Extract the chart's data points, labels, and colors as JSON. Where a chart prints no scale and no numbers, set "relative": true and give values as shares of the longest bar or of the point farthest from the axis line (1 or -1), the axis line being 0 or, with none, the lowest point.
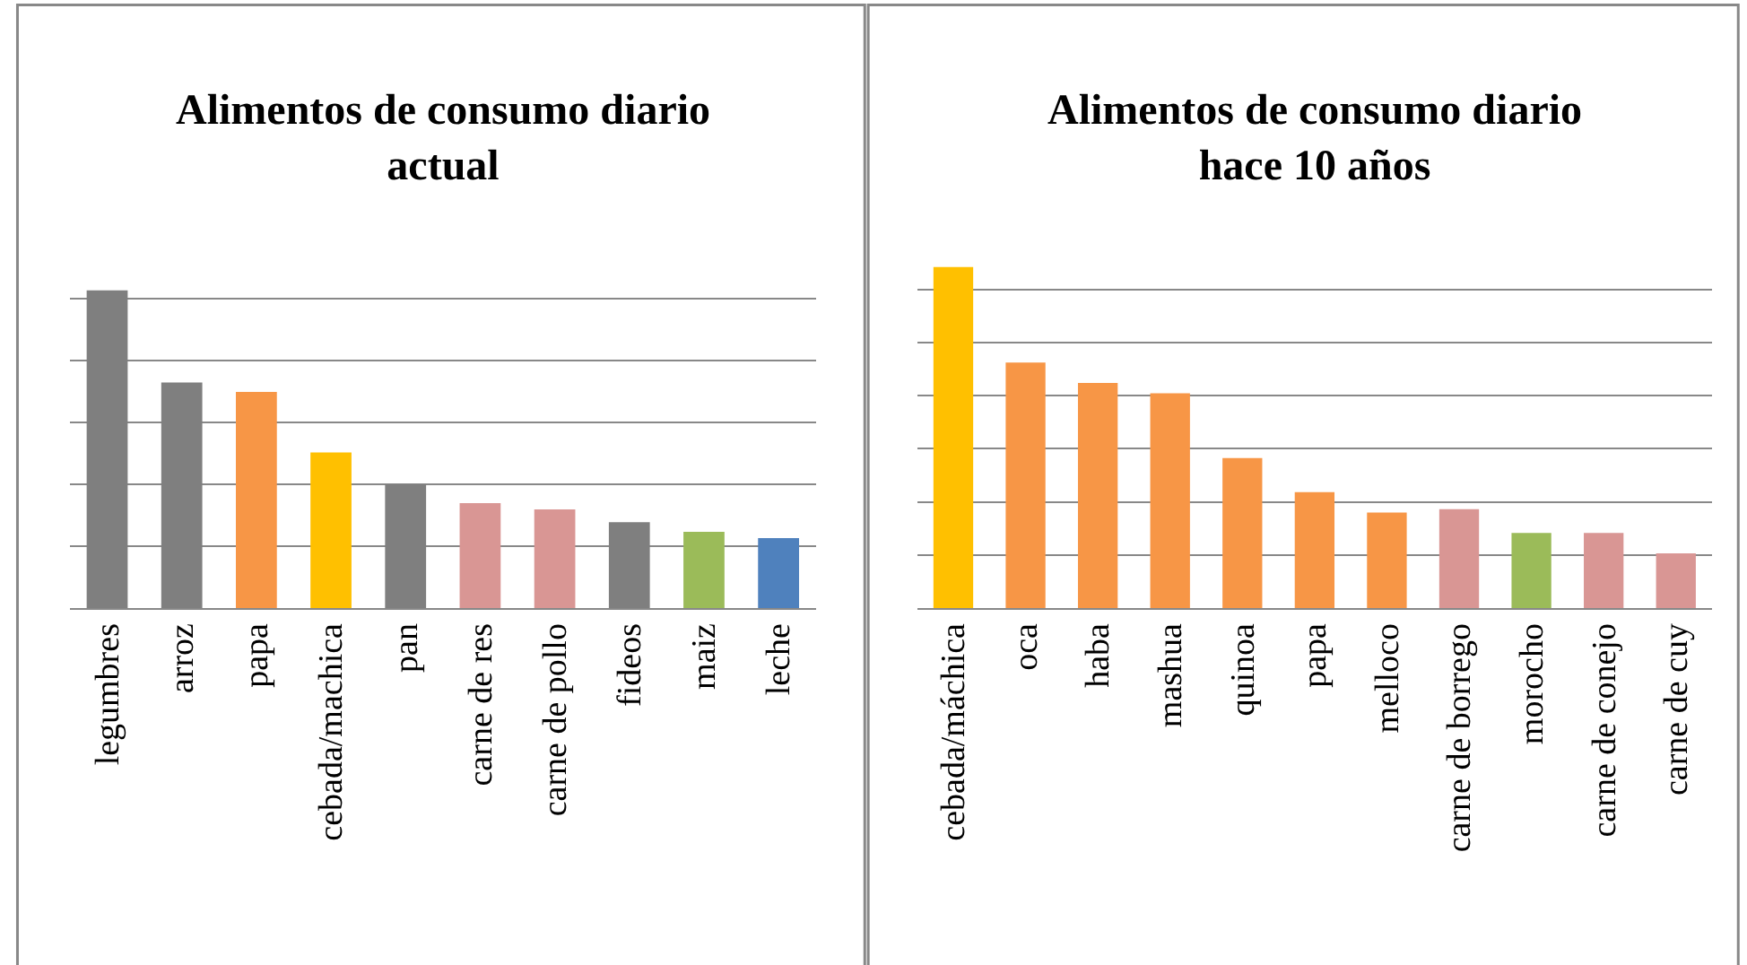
{
  "chart_data": [
    {
      "type": "bar",
      "title": "Alimentos de consumo diario actual",
      "relative": true,
      "grid": "y",
      "categories": [
        "legumbres",
        "arroz",
        "papa",
        "cebada/machica",
        "pan",
        "carne de res",
        "carne de pollo",
        "fideos",
        "maiz",
        "leche"
      ],
      "values": [
        1,
        0.71,
        0.68,
        0.49,
        0.39,
        0.33,
        0.31,
        0.27,
        0.24,
        0.22
      ],
      "colors": [
        "#7f7f7f",
        "#7f7f7f",
        "#f79646",
        "#ffc000",
        "#7f7f7f",
        "#d99694",
        "#d99694",
        "#7f7f7f",
        "#9bbb59",
        "#4f81bd"
      ]
    },
    {
      "type": "bar",
      "title": "Alimentos de consumo diario hace 10 años",
      "relative": true,
      "grid": "y",
      "categories": [
        "cebada/máchica",
        "oca",
        "haba",
        "mashua",
        "quinoa",
        "papa",
        "melloco",
        "carne de borrego",
        "morocho",
        "carne de conejo",
        "carne de cuy"
      ],
      "values": [
        1,
        0.72,
        0.66,
        0.63,
        0.44,
        0.34,
        0.28,
        0.29,
        0.22,
        0.22,
        0.16
      ],
      "colors": [
        "#ffc000",
        "#f79646",
        "#f79646",
        "#f79646",
        "#f79646",
        "#f79646",
        "#f79646",
        "#d99694",
        "#9bbb59",
        "#d99694",
        "#d99694"
      ]
    }
  ]
}
